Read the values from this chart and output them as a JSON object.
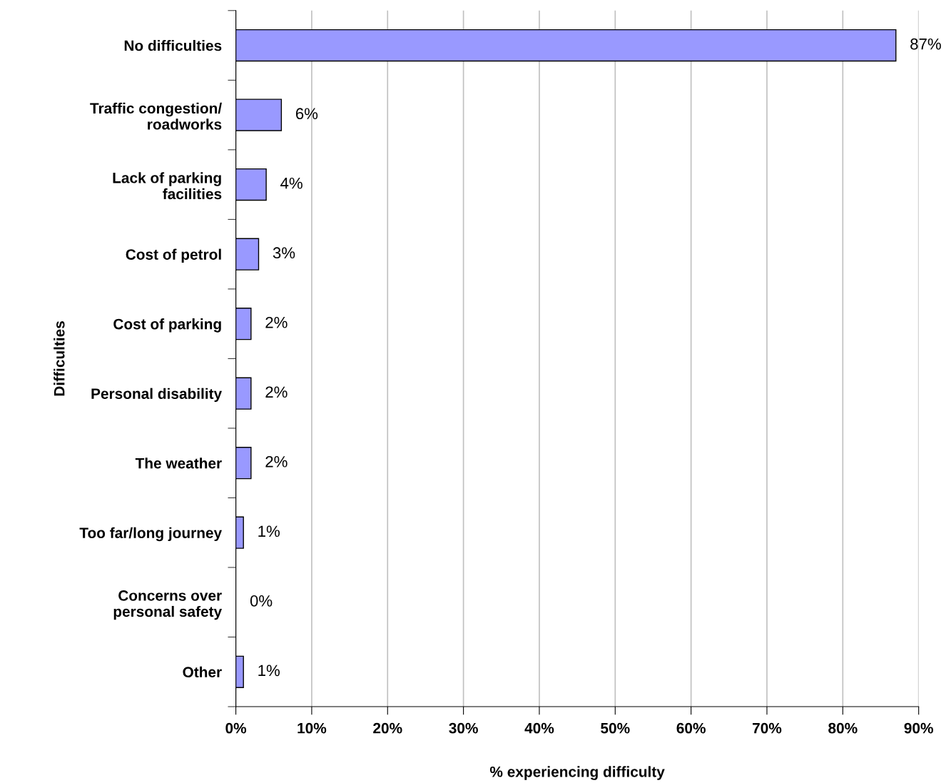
{
  "chart_data": {
    "type": "bar",
    "orientation": "horizontal",
    "categories": [
      "No difficulties",
      "Traffic congestion/\nroadworks",
      "Lack of parking\nfacilities",
      "Cost of petrol",
      "Cost of parking",
      "Personal disability",
      "The weather",
      "Too far/long journey",
      "Concerns over\npersonal safety",
      "Other"
    ],
    "values": [
      87,
      6,
      4,
      3,
      2,
      2,
      2,
      1,
      0,
      1
    ],
    "value_labels": [
      "87%",
      "6%",
      "4%",
      "3%",
      "2%",
      "2%",
      "2%",
      "1%",
      "0%",
      "1%"
    ],
    "color": "#9999ff",
    "xlabel": "% experiencing difficulty",
    "ylabel": "Difficulties",
    "xlim": [
      0,
      90
    ],
    "xticks": [
      {
        "value": 0,
        "label": "0%"
      },
      {
        "value": 10,
        "label": "10%"
      },
      {
        "value": 20,
        "label": "20%"
      },
      {
        "value": 30,
        "label": "30%"
      },
      {
        "value": 40,
        "label": "40%"
      },
      {
        "value": 50,
        "label": "50%"
      },
      {
        "value": 60,
        "label": "60%"
      },
      {
        "value": 70,
        "label": "70%"
      },
      {
        "value": 80,
        "label": "80%"
      },
      {
        "value": 90,
        "label": "90%"
      }
    ],
    "grid": "x",
    "legend": false
  }
}
